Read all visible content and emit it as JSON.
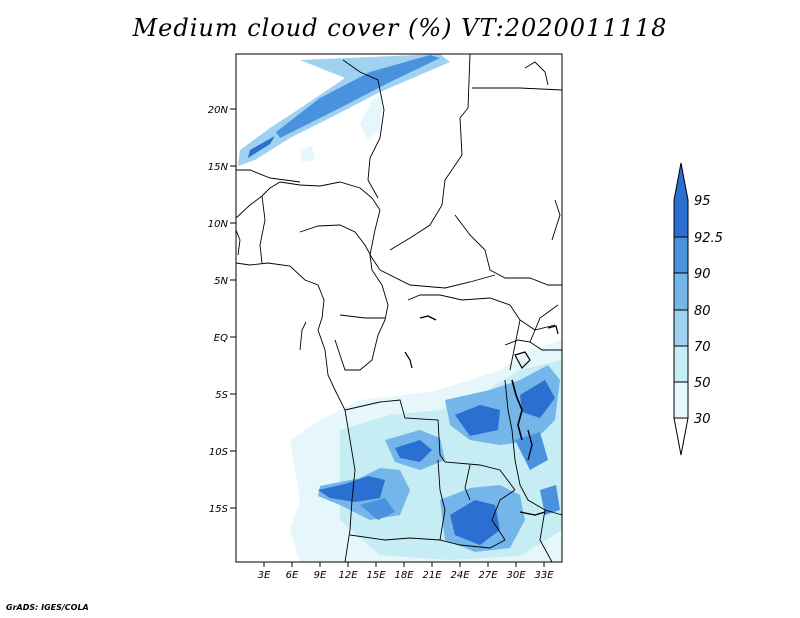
{
  "title": "Medium cloud cover (%) VT:2020011118",
  "lat_labels": [
    "20N",
    "15N",
    "10N",
    "5N",
    "EQ",
    "5S",
    "10S",
    "15S"
  ],
  "lon_labels": [
    "3E",
    "6E",
    "9E",
    "12E",
    "15E",
    "18E",
    "21E",
    "24E",
    "27E",
    "30E",
    "33E"
  ],
  "colorbar": {
    "labels": [
      "30",
      "50",
      "70",
      "80",
      "90",
      "92.5",
      "95"
    ],
    "colors": [
      "#ffffff",
      "#e6f7fb",
      "#c6ecf4",
      "#9fd2f0",
      "#74b5ea",
      "#4a92de",
      "#2b6fd0"
    ]
  },
  "footer": "GrADS: IGES/COLA"
}
